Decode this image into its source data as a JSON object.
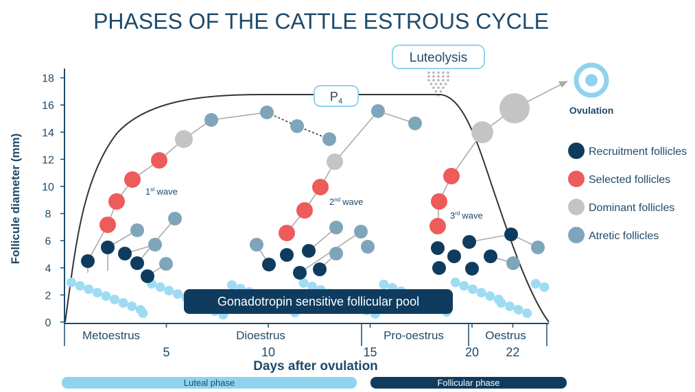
{
  "title": "PHASES OF THE CATTLE ESTROUS CYCLE",
  "hormone": {
    "letter": "P",
    "subscript": "4"
  },
  "event": "Luteolysis",
  "outcome": "Ovulation",
  "y_axis": {
    "label": "Follicule diameter (mm)",
    "ticks": [
      0,
      2,
      4,
      6,
      8,
      10,
      12,
      14,
      16,
      18
    ]
  },
  "x_axis": {
    "label": "Days after ovulation",
    "ticks": [
      5,
      10,
      15,
      20,
      22
    ]
  },
  "waves": [
    {
      "number": "1",
      "suffix": "st",
      "word": "wave"
    },
    {
      "number": "2",
      "suffix": "nd",
      "word": "wave"
    },
    {
      "number": "3",
      "suffix": "rd",
      "word": "wave"
    }
  ],
  "pool": "Gonadotropin sensitive follicular pool",
  "stages": [
    "Metoestrus",
    "Dioestrus",
    "Pro-oestrus",
    "Oestrus"
  ],
  "legend": [
    "Recruitment follicles",
    "Selected follicles",
    "Dominant follicles",
    "Atretic follicles"
  ],
  "phases": [
    "Luteal phase",
    "Follicular phase"
  ]
}
